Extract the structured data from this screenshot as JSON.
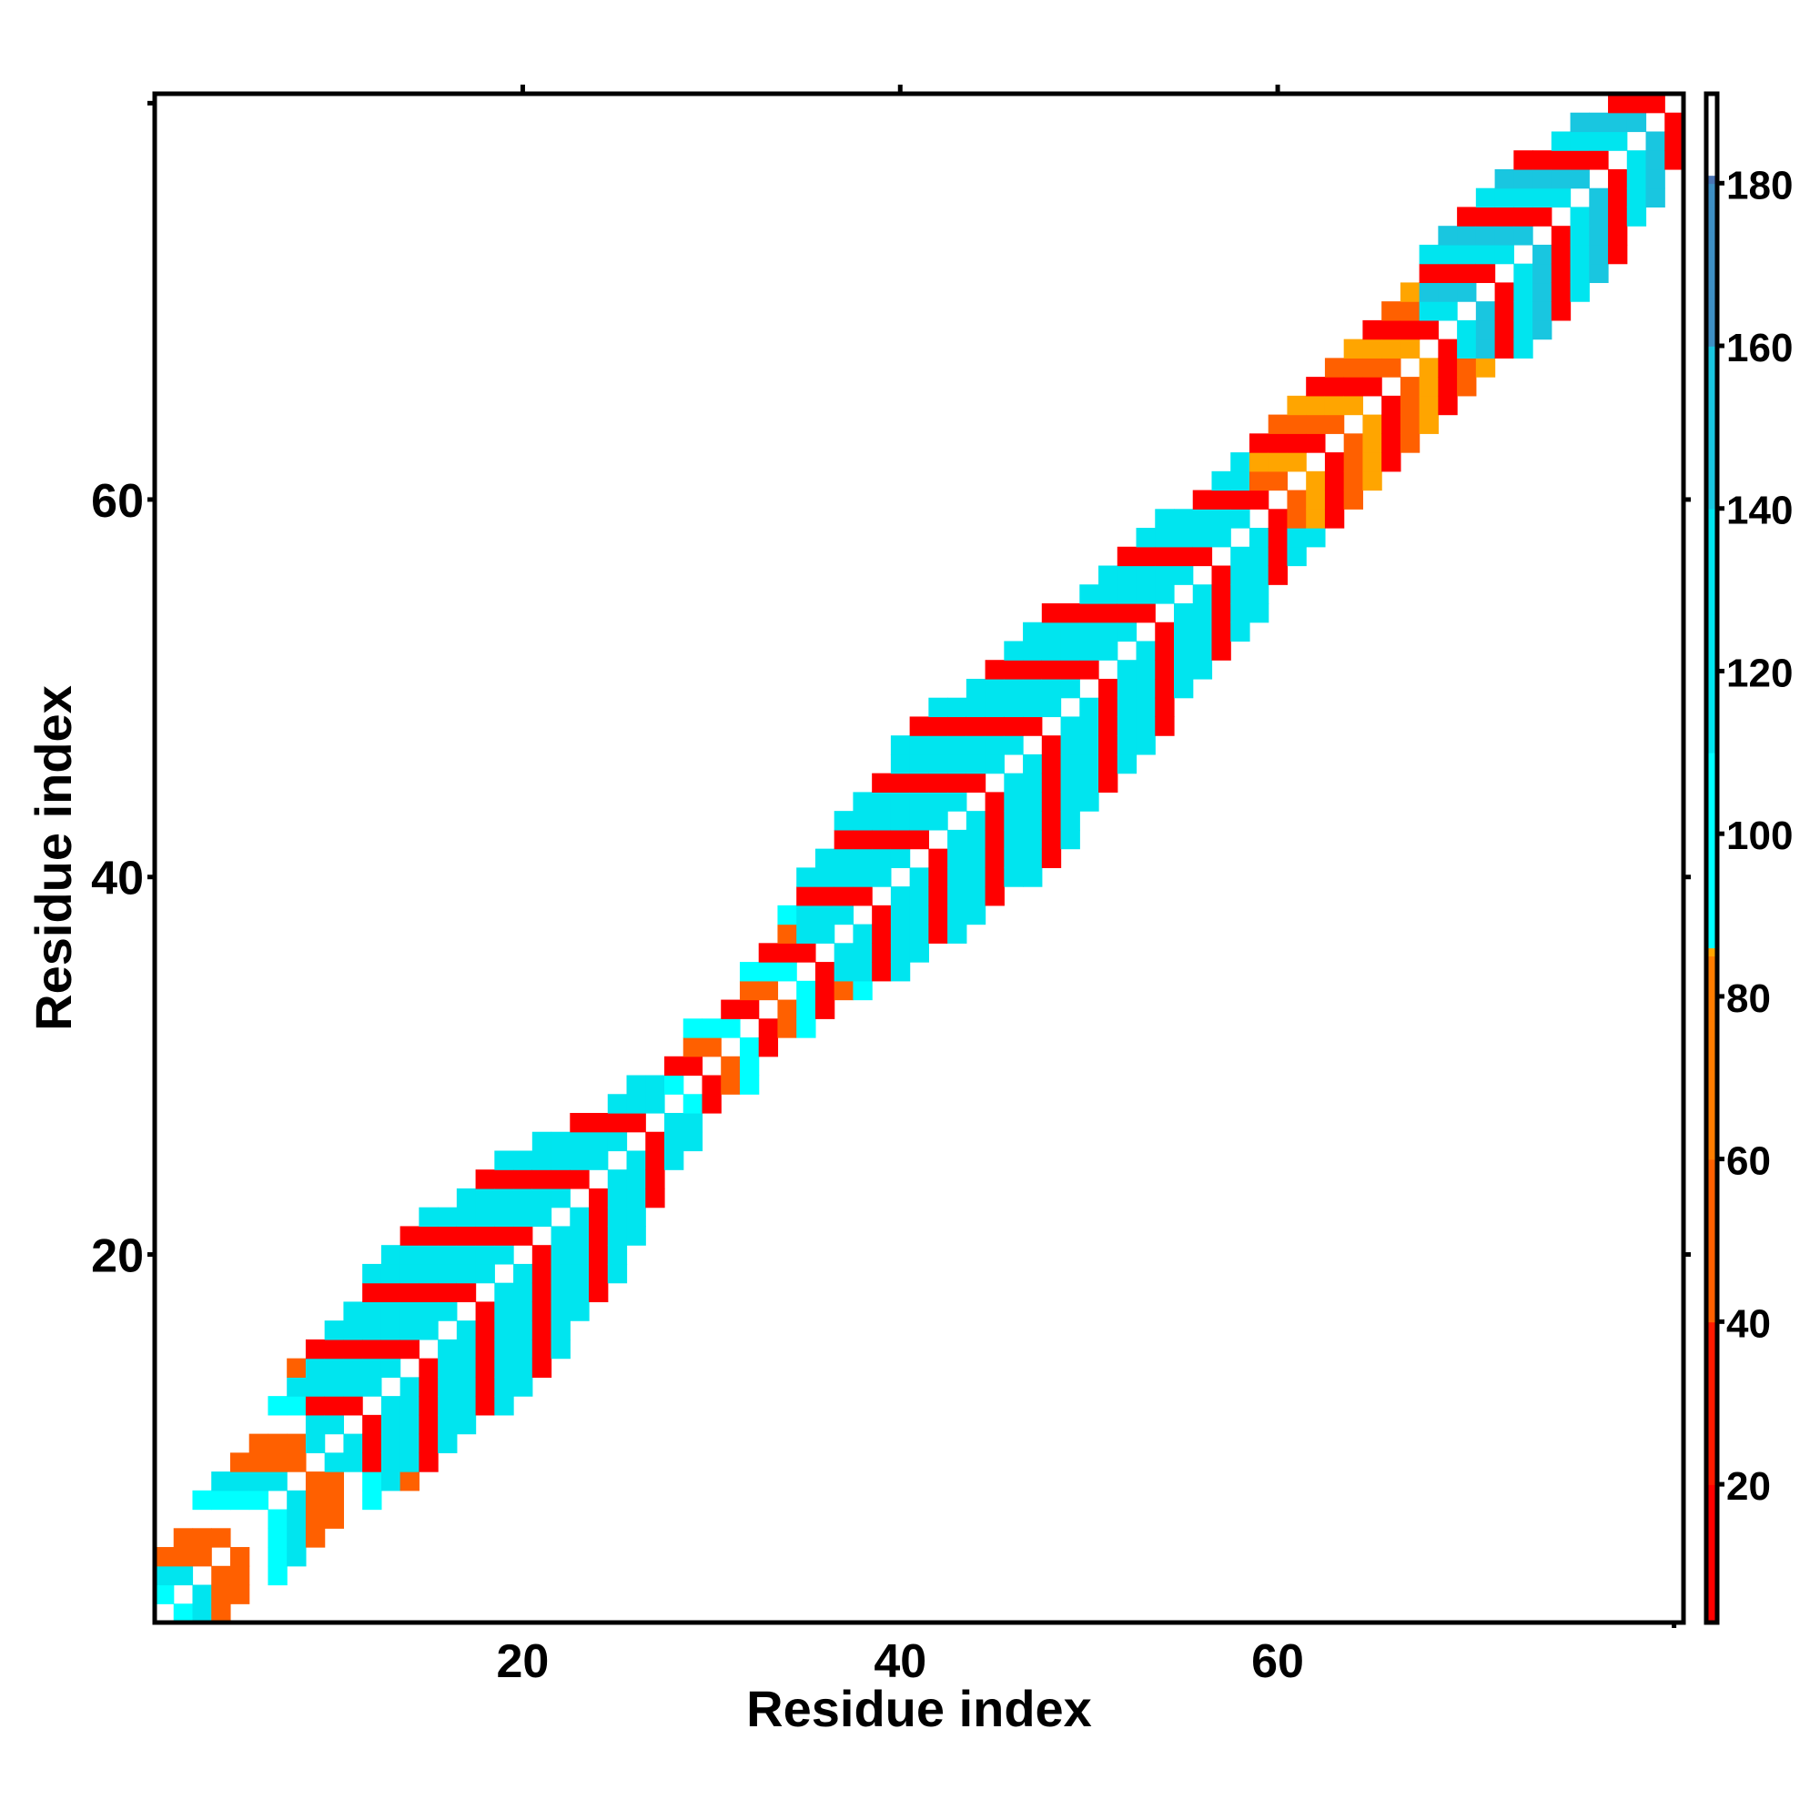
{
  "chart_data": {
    "type": "heatmap",
    "xlabel": "Residue index",
    "ylabel": "Residue index",
    "xlim": [
      0.5,
      81.5
    ],
    "ylim": [
      0.5,
      81.5
    ],
    "x_ticks": [
      20,
      40,
      60
    ],
    "y_ticks": [
      20,
      40,
      60
    ],
    "colorbar": {
      "range": [
        3,
        191
      ],
      "ticks": [
        20,
        40,
        60,
        80,
        100,
        120,
        140,
        160,
        180
      ],
      "color_stops": [
        {
          "value": 3,
          "color": "#ff0000"
        },
        {
          "value": 20,
          "color": "#ff1a00"
        },
        {
          "value": 40,
          "color": "#ff6000"
        },
        {
          "value": 60,
          "color": "#ff7d00"
        },
        {
          "value": 85,
          "color": "#ffa500"
        },
        {
          "value": 86,
          "color": "#00ffff"
        },
        {
          "value": 110,
          "color": "#00e5ef"
        },
        {
          "value": 140,
          "color": "#19c6e0"
        },
        {
          "value": 160,
          "color": "#3e8fc4"
        },
        {
          "value": 180,
          "color": "#4a73b4"
        },
        {
          "value": 181,
          "color": "#ffffff"
        },
        {
          "value": 191,
          "color": "#ffffff"
        }
      ]
    },
    "band": {
      "description_free": true,
      "half_width_profile": [
        [
          1,
          3
        ],
        [
          5,
          4
        ],
        [
          9,
          6
        ],
        [
          14,
          7
        ],
        [
          20,
          7
        ],
        [
          25,
          6
        ],
        [
          28,
          3
        ],
        [
          31,
          2
        ],
        [
          34,
          4
        ],
        [
          38,
          6
        ],
        [
          42,
          7
        ],
        [
          47,
          7
        ],
        [
          52,
          6
        ],
        [
          57,
          5
        ],
        [
          62,
          4
        ],
        [
          66,
          4
        ],
        [
          69,
          5
        ],
        [
          73,
          6
        ],
        [
          78,
          5
        ],
        [
          81,
          3
        ]
      ],
      "segments": [
        {
          "from": 1,
          "to": 8,
          "pattern": [
            "#ff6000",
            "#00e5ef",
            "#ffffff",
            "#ff6000",
            "#00ffff"
          ]
        },
        {
          "from": 9,
          "to": 27,
          "pattern": [
            "#ff0000",
            "#ff6000",
            "#00e5ef",
            "#ffffff",
            "#00e5ef",
            "#ff6000"
          ]
        },
        {
          "from": 28,
          "to": 34,
          "pattern": [
            "#ff0000",
            "#ffa500",
            "#ff6000",
            "#ffffff",
            "#00ffff",
            "#ff6000"
          ]
        },
        {
          "from": 35,
          "to": 58,
          "pattern": [
            "#ff0000",
            "#ff6000",
            "#00e5ef",
            "#ffffff",
            "#00e5ef",
            "#ff6000"
          ]
        },
        {
          "from": 59,
          "to": 67,
          "pattern": [
            "#ff0000",
            "#ffa500",
            "#ff6000",
            "#ffffff",
            "#ffa500",
            "#ff6000"
          ]
        },
        {
          "from": 68,
          "to": 81,
          "pattern": [
            "#ff0000",
            "#ff6000",
            "#00e5ef",
            "#ffffff",
            "#19c6e0",
            "#ff6000"
          ]
        }
      ]
    }
  }
}
